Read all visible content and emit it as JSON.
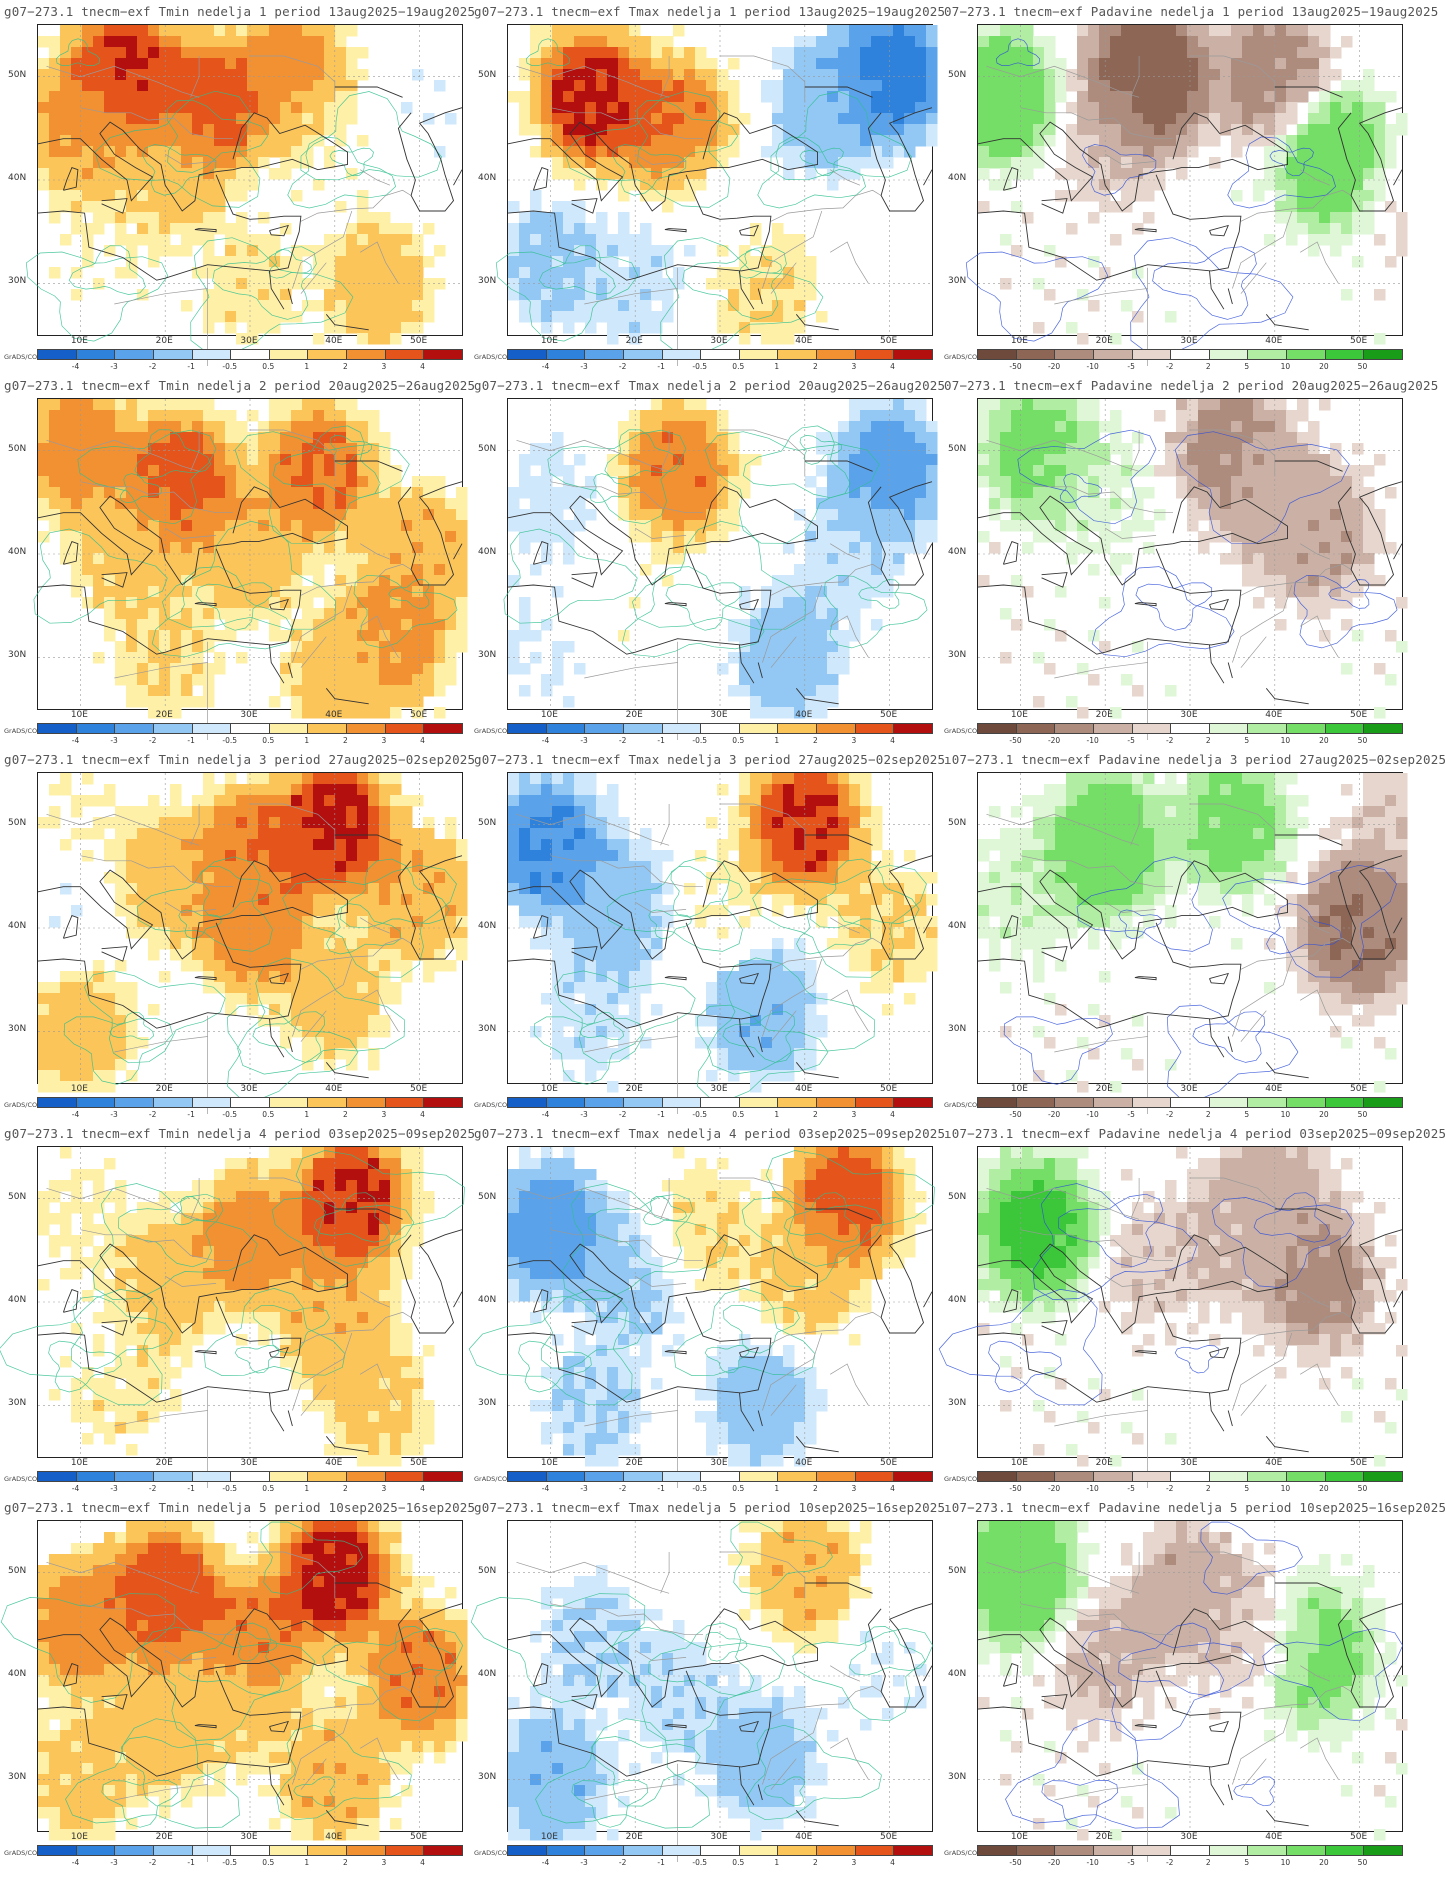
{
  "axes": {
    "lat_labels": [
      "50N",
      "40N",
      "30N"
    ],
    "lon_labels": [
      "10E",
      "20E",
      "30E",
      "40E",
      "50E"
    ]
  },
  "grads_label": "GrADS/COLA",
  "temp_scale": {
    "labels": [
      "-4",
      "-3",
      "-2",
      "-1",
      "-0.5",
      "0.5",
      "1",
      "2",
      "3",
      "4"
    ],
    "colors": [
      "#1560c8",
      "#2e82dc",
      "#5aa2ea",
      "#93c8f4",
      "#cfe8fb",
      "#ffffff",
      "#fff0a8",
      "#fbc55a",
      "#f29132",
      "#e4541b",
      "#b40f0f"
    ]
  },
  "precip_scale": {
    "labels": [
      "-50",
      "-20",
      "-10",
      "-5",
      "-2",
      "2",
      "5",
      "10",
      "20",
      "50"
    ],
    "colors": [
      "#6e4a3c",
      "#8d6656",
      "#ad8c7e",
      "#cbb1a5",
      "#e7d6cd",
      "#ffffff",
      "#dff7d6",
      "#b2eda4",
      "#74de66",
      "#3cc73a",
      "#199c18"
    ]
  },
  "rows": [
    {
      "tmin_title": "g07−273.1 tnecm−exf Tmin nedelja 1 period 13aug2025−19aug2025",
      "tmax_title": "g07−273.1 tnecm−exf Tmax nedelja 1 period 13aug2025−19aug2025",
      "pad_title": "07−273.1 tnecm−exf Padavine nedelja 1 period 13aug2025−19aug2025"
    },
    {
      "tmin_title": "g07−273.1 tnecm−exf Tmin nedelja 2 period 20aug2025−26aug2025",
      "tmax_title": "g07−273.1 tnecm−exf Tmax nedelja 2 period 20aug2025−26aug2025",
      "pad_title": "07−273.1 tnecm−exf Padavine nedelja 2 period 20aug2025−26aug2025"
    },
    {
      "tmin_title": "g07−273.1 tnecm−exf Tmin nedelja 3 period 27aug2025−02sep2025",
      "tmax_title": "g07−273.1 tnecm−exf Tmax nedelja 3 period 27aug2025−02sep2025",
      "pad_title": "ı07−273.1 tnecm−exf Padavine nedelja 3 period 27aug2025−02sep2025"
    },
    {
      "tmin_title": "g07−273.1 tnecm−exf Tmin nedelja 4 period 03sep2025−09sep2025",
      "tmax_title": "g07−273.1 tnecm−exf Tmax nedelja 4 period 03sep2025−09sep2025",
      "pad_title": "ı07−273.1 tnecm−exf Padavine nedelja 4 period 03sep2025−09sep2025"
    },
    {
      "tmin_title": "g07−273.1 tnecm−exf Tmin nedelja 5 period 10sep2025−16sep2025",
      "tmax_title": "g07−273.1 tnecm−exf Tmax nedelja 5 period 10sep2025−16sep2025",
      "pad_title": "ı07−273.1 tnecm−exf Padavine nedelja 5 period 10sep2025−16sep2025"
    }
  ],
  "anomaly_fields": {
    "tmin": [
      [
        {
          "lon": 15,
          "lat": 50,
          "a": 4.2
        },
        {
          "lon": 25,
          "lat": 47,
          "a": 3.5
        },
        {
          "lon": 35,
          "lat": 50,
          "a": 2.5
        },
        {
          "lon": 10,
          "lat": 45,
          "a": 2
        },
        {
          "lon": 20,
          "lat": 40,
          "a": 1.2
        },
        {
          "lon": 45,
          "lat": 30,
          "a": 1.5
        },
        {
          "lon": 40,
          "lat": 44,
          "a": 0.3
        },
        {
          "lon": 50,
          "lat": 47,
          "a": -0.3
        },
        {
          "lon": 12,
          "lat": 33,
          "a": 0.4
        },
        {
          "lon": 30,
          "lat": 30,
          "a": 0.8
        }
      ],
      [
        {
          "lon": 22,
          "lat": 47,
          "a": 3.5
        },
        {
          "lon": 10,
          "lat": 50,
          "a": 2.5
        },
        {
          "lon": 38,
          "lat": 48,
          "a": 3
        },
        {
          "lon": 15,
          "lat": 40,
          "a": 1.2
        },
        {
          "lon": 30,
          "lat": 40,
          "a": 1.5
        },
        {
          "lon": 47,
          "lat": 32,
          "a": 2.4
        },
        {
          "lon": 20,
          "lat": 30,
          "a": 1
        },
        {
          "lon": 40,
          "lat": 28,
          "a": 1.3
        },
        {
          "lon": 50,
          "lat": 40,
          "a": 1.8
        }
      ],
      [
        {
          "lon": 40,
          "lat": 50,
          "a": 4.2
        },
        {
          "lon": 30,
          "lat": 47,
          "a": 3
        },
        {
          "lon": 10,
          "lat": 50,
          "a": 0.5
        },
        {
          "lon": 20,
          "lat": 45,
          "a": 1.5
        },
        {
          "lon": 30,
          "lat": 40,
          "a": 2.5
        },
        {
          "lon": 10,
          "lat": 30,
          "a": 1.5
        },
        {
          "lon": 40,
          "lat": 33,
          "a": 1.3
        },
        {
          "lon": 8,
          "lat": 42,
          "a": -0.4
        },
        {
          "lon": 50,
          "lat": 43,
          "a": 1.8
        }
      ],
      [
        {
          "lon": 42,
          "lat": 50,
          "a": 4
        },
        {
          "lon": 30,
          "lat": 46,
          "a": 2.5
        },
        {
          "lon": 10,
          "lat": 48,
          "a": 0.6
        },
        {
          "lon": 20,
          "lat": 42,
          "a": 1.5
        },
        {
          "lon": 40,
          "lat": 38,
          "a": 1.8
        },
        {
          "lon": 15,
          "lat": 32,
          "a": 0.8
        },
        {
          "lon": 45,
          "lat": 30,
          "a": 1.2
        },
        {
          "lon": 10,
          "lat": 37,
          "a": 0.2
        }
      ],
      [
        {
          "lon": 40,
          "lat": 50,
          "a": 4.2
        },
        {
          "lon": 20,
          "lat": 48,
          "a": 3.5
        },
        {
          "lon": 10,
          "lat": 45,
          "a": 2.5
        },
        {
          "lon": 30,
          "lat": 43,
          "a": 3
        },
        {
          "lon": 50,
          "lat": 40,
          "a": 2.8
        },
        {
          "lon": 20,
          "lat": 35,
          "a": 1.5
        },
        {
          "lon": 40,
          "lat": 30,
          "a": 1.8
        },
        {
          "lon": 10,
          "lat": 30,
          "a": 1.2
        },
        {
          "lon": 28,
          "lat": 37,
          "a": 1
        }
      ]
    ],
    "tmax": [
      [
        {
          "lon": 15,
          "lat": 48,
          "a": 4.2
        },
        {
          "lon": 25,
          "lat": 45,
          "a": 3
        },
        {
          "lon": 50,
          "lat": 50,
          "a": -3.5
        },
        {
          "lon": 42,
          "lat": 47,
          "a": -1.5
        },
        {
          "lon": 10,
          "lat": 32,
          "a": -1.2
        },
        {
          "lon": 35,
          "lat": 30,
          "a": 1
        },
        {
          "lon": 30,
          "lat": 38,
          "a": -0.3
        },
        {
          "lon": 20,
          "lat": 30,
          "a": -0.8
        }
      ],
      [
        {
          "lon": 25,
          "lat": 48,
          "a": 2.8
        },
        {
          "lon": 50,
          "lat": 48,
          "a": -2.5
        },
        {
          "lon": 10,
          "lat": 45,
          "a": -0.7
        },
        {
          "lon": 38,
          "lat": 30,
          "a": -1.5
        },
        {
          "lon": 20,
          "lat": 35,
          "a": 0.2
        },
        {
          "lon": 45,
          "lat": 40,
          "a": -0.8
        },
        {
          "lon": 8,
          "lat": 30,
          "a": -0.5
        }
      ],
      [
        {
          "lon": 40,
          "lat": 50,
          "a": 4
        },
        {
          "lon": 10,
          "lat": 48,
          "a": -3
        },
        {
          "lon": 18,
          "lat": 42,
          "a": -1.5
        },
        {
          "lon": 30,
          "lat": 42,
          "a": 0.5
        },
        {
          "lon": 35,
          "lat": 32,
          "a": -1.8
        },
        {
          "lon": 50,
          "lat": 40,
          "a": 1
        },
        {
          "lon": 15,
          "lat": 32,
          "a": -0.8
        }
      ],
      [
        {
          "lon": 45,
          "lat": 50,
          "a": 3.5
        },
        {
          "lon": 10,
          "lat": 47,
          "a": -2.5
        },
        {
          "lon": 20,
          "lat": 42,
          "a": -1.2
        },
        {
          "lon": 40,
          "lat": 42,
          "a": 1.2
        },
        {
          "lon": 35,
          "lat": 30,
          "a": -1.5
        },
        {
          "lon": 15,
          "lat": 30,
          "a": -1
        },
        {
          "lon": 28,
          "lat": 47,
          "a": 1
        }
      ],
      [
        {
          "lon": 40,
          "lat": 50,
          "a": 1.8
        },
        {
          "lon": 15,
          "lat": 44,
          "a": -1
        },
        {
          "lon": 25,
          "lat": 38,
          "a": -0.8
        },
        {
          "lon": 35,
          "lat": 32,
          "a": -1.5
        },
        {
          "lon": 10,
          "lat": 30,
          "a": -1.8
        },
        {
          "lon": 50,
          "lat": 40,
          "a": -0.4
        }
      ]
    ],
    "pad": [
      [
        {
          "lon": 25,
          "lat": 50,
          "a": -30
        },
        {
          "lon": 40,
          "lat": 50,
          "a": -12
        },
        {
          "lon": 8,
          "lat": 48,
          "a": 15
        },
        {
          "lon": 47,
          "lat": 42,
          "a": 18
        },
        {
          "lon": 20,
          "lat": 43,
          "a": -4
        },
        {
          "lon": 55,
          "lat": 38,
          "a": -3
        }
      ],
      [
        {
          "lon": 12,
          "lat": 50,
          "a": 12
        },
        {
          "lon": 35,
          "lat": 50,
          "a": -12
        },
        {
          "lon": 40,
          "lat": 45,
          "a": -6
        },
        {
          "lon": 45,
          "lat": 42,
          "a": -10
        },
        {
          "lon": 20,
          "lat": 45,
          "a": 3
        }
      ],
      [
        {
          "lon": 20,
          "lat": 48,
          "a": 18
        },
        {
          "lon": 35,
          "lat": 50,
          "a": 12
        },
        {
          "lon": 50,
          "lat": 40,
          "a": -20
        },
        {
          "lon": 10,
          "lat": 43,
          "a": 4
        },
        {
          "lon": 55,
          "lat": 50,
          "a": -4
        }
      ],
      [
        {
          "lon": 12,
          "lat": 47,
          "a": 22
        },
        {
          "lon": 40,
          "lat": 50,
          "a": -8
        },
        {
          "lon": 45,
          "lat": 42,
          "a": -12
        },
        {
          "lon": 25,
          "lat": 44,
          "a": -4
        },
        {
          "lon": 35,
          "lat": 46,
          "a": -6
        }
      ],
      [
        {
          "lon": 10,
          "lat": 50,
          "a": 18
        },
        {
          "lon": 45,
          "lat": 42,
          "a": 14
        },
        {
          "lon": 30,
          "lat": 48,
          "a": -8
        },
        {
          "lon": 20,
          "lat": 42,
          "a": -6
        },
        {
          "lon": 38,
          "lat": 44,
          "a": -5
        }
      ]
    ]
  }
}
